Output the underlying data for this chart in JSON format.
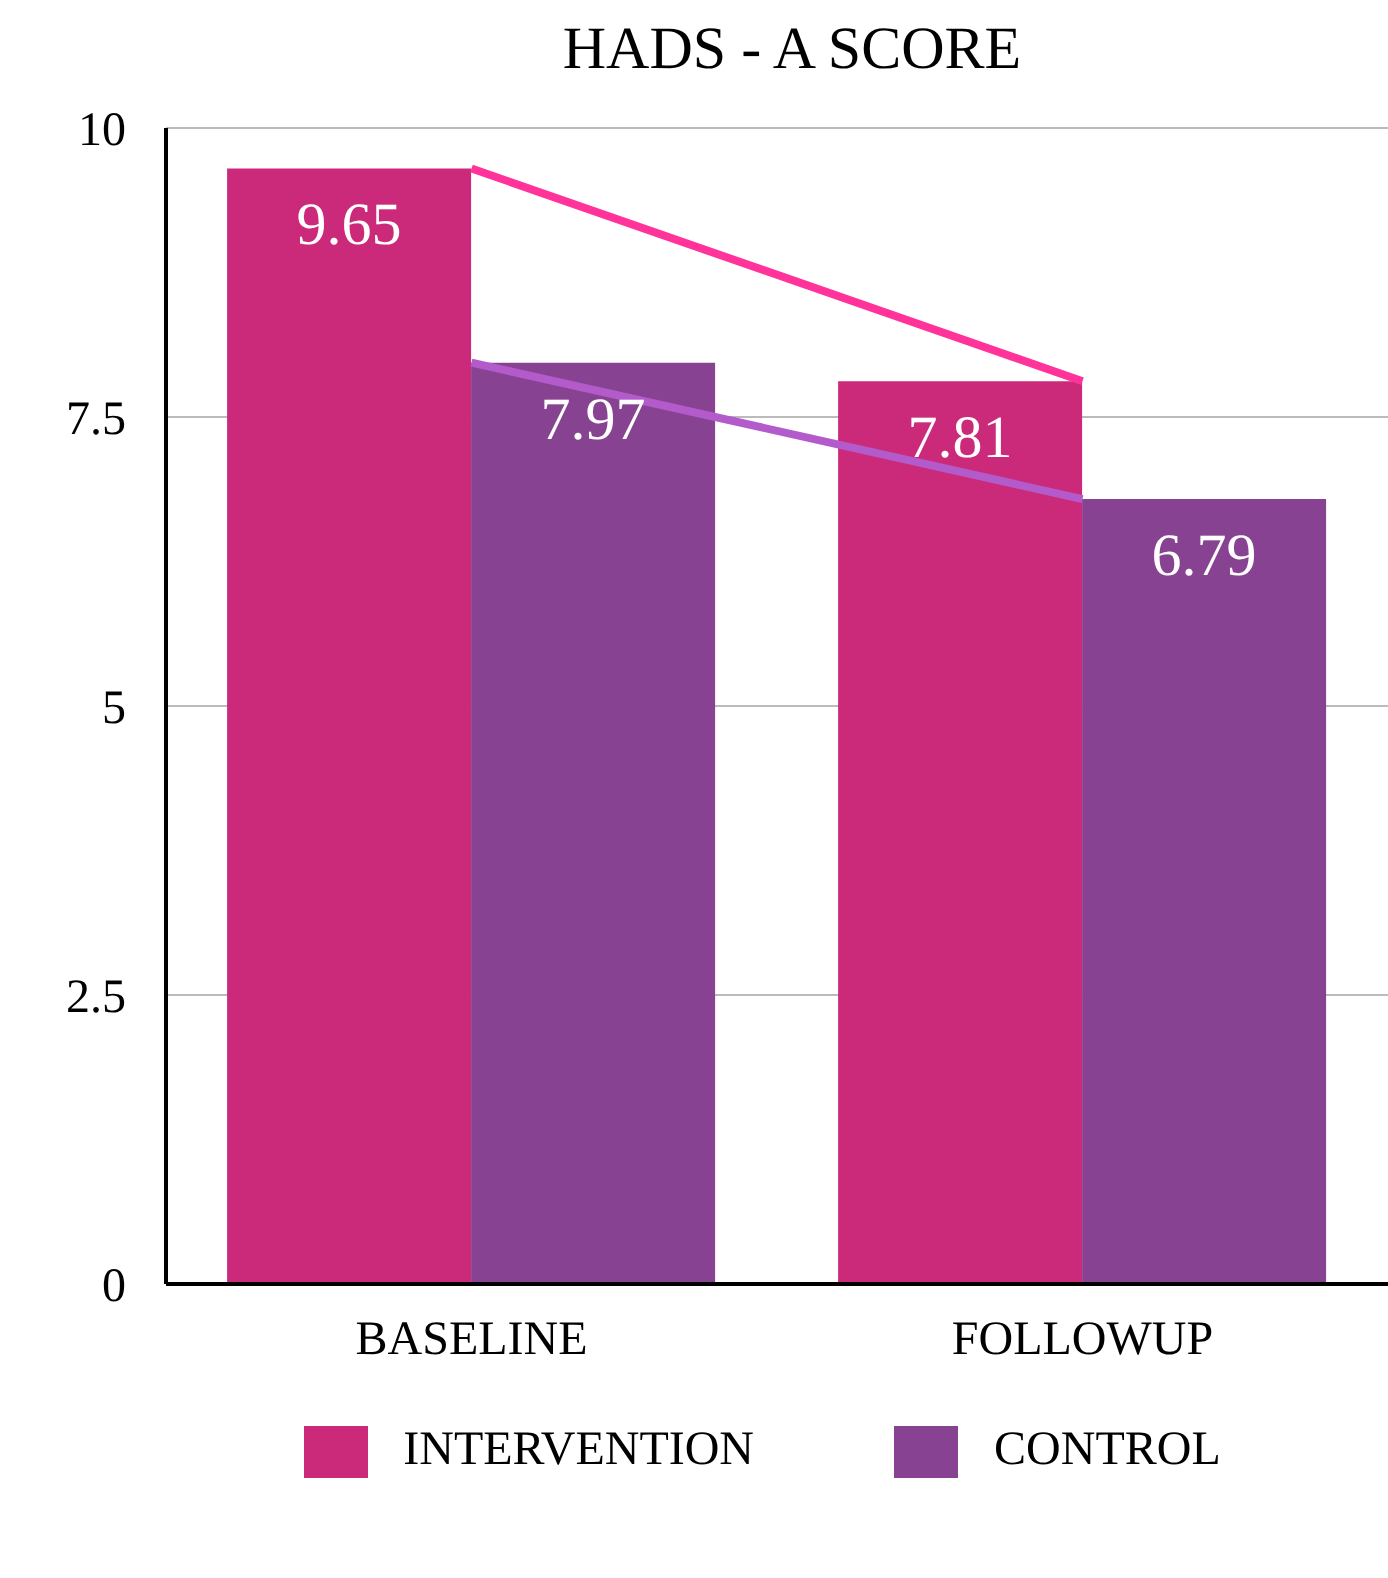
{
  "chart_data": {
    "type": "bar",
    "title": "HADS - A SCORE",
    "categories": [
      "BASELINE",
      "FOLLOWUP"
    ],
    "series": [
      {
        "name": "INTERVENTION",
        "color": "#cb2a7b",
        "values": [
          9.65,
          7.81
        ],
        "value_labels": [
          "9.65",
          "7.81"
        ]
      },
      {
        "name": "CONTROL",
        "color": "#874391",
        "values": [
          7.97,
          6.79
        ],
        "value_labels": [
          "7.97",
          "6.79"
        ]
      },
      {
        "type": "line",
        "color": "#ff3399",
        "x": [
          "BASELINE",
          "FOLLOWUP"
        ],
        "values": [
          9.65,
          7.81
        ]
      },
      {
        "type": "line",
        "color": "#b35bcb",
        "x": [
          "BASELINE",
          "FOLLOWUP"
        ],
        "values": [
          7.97,
          6.79
        ]
      }
    ],
    "ylim": [
      0,
      10
    ],
    "yticks": [
      0,
      2.5,
      5,
      7.5,
      10
    ],
    "grid": "y",
    "legend": "bottom"
  }
}
